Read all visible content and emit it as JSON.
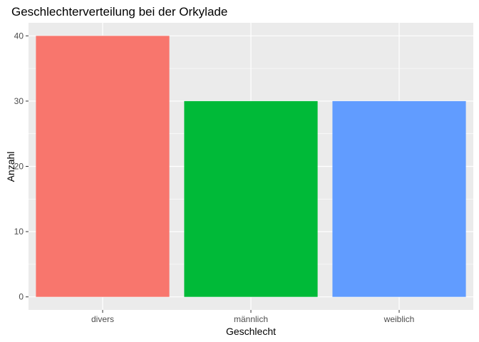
{
  "chart_data": {
    "type": "bar",
    "title": "Geschlechterverteilung bei der Orkylade",
    "xlabel": "Geschlecht",
    "ylabel": "Anzahl",
    "categories": [
      "divers",
      "männlich",
      "weiblich"
    ],
    "values": [
      40,
      30,
      30
    ],
    "colors": [
      "#F8766D",
      "#00BA38",
      "#619CFF"
    ],
    "ylim": [
      -2,
      42
    ],
    "yticks": [
      0,
      10,
      20,
      30,
      40
    ],
    "grid": true,
    "panel_background": "#EBEBEB",
    "grid_color": "#FFFFFF"
  }
}
